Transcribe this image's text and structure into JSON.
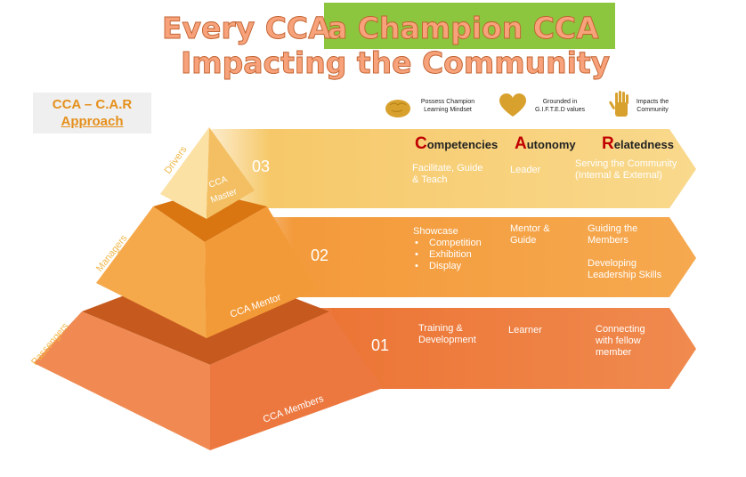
{
  "title": {
    "line1_part1": "Every CCA",
    "line1_part2": "a Champion CCA",
    "line2": "Impacting the Community",
    "highlight_color": "#8cc63f"
  },
  "approach_box": {
    "line1": "CCA – C.A.R",
    "line2": "Approach"
  },
  "icons": [
    {
      "name": "brain-icon",
      "caption_line1": "Possess Champion",
      "caption_line2": "Learning Mindset"
    },
    {
      "name": "heart-icon",
      "caption_line1": "Grounded in",
      "caption_line2": "G.I.F.T.E.D values"
    },
    {
      "name": "hand-icon",
      "caption_line1": "Impacts the",
      "caption_line2": "Community"
    }
  ],
  "columns": {
    "competencies": {
      "cap": "C",
      "rest": "ompetencies"
    },
    "autonomy": {
      "cap": "A",
      "rest": "utonomy"
    },
    "relatedness": {
      "cap": "R",
      "rest": "elatedness"
    }
  },
  "tiers": [
    {
      "side_label": "Drivers",
      "pyramid_label_line1": "CCA",
      "pyramid_label_line2": "Master",
      "number": "03",
      "competencies_line1": "Facilitate, Guide",
      "competencies_line2": "& Teach",
      "autonomy": "Leader",
      "relatedness_line1": "Serving the Community",
      "relatedness_line2": "(Internal & External)",
      "color": "#f7c46c"
    },
    {
      "side_label": "Managers",
      "pyramid_label": "CCA Mentor",
      "number": "02",
      "competencies_title": "Showcase",
      "competencies_bullets": [
        "Competition",
        "Exhibition",
        "Display"
      ],
      "autonomy_line1": "Mentor &",
      "autonomy_line2": "Guide",
      "relatedness_a_line1": "Guiding the",
      "relatedness_a_line2": "Members",
      "relatedness_b_line1": "Developing",
      "relatedness_b_line2": "Leadership Skills",
      "color": "#f39a3b"
    },
    {
      "side_label": "Passengers",
      "pyramid_label": "CCA Members",
      "number": "01",
      "competencies_line1": "Training &",
      "competencies_line2": "Development",
      "autonomy": "Learner",
      "relatedness_line1": "Connecting",
      "relatedness_line2": "with fellow",
      "relatedness_line3": "member",
      "color": "#ee7e43"
    }
  ]
}
